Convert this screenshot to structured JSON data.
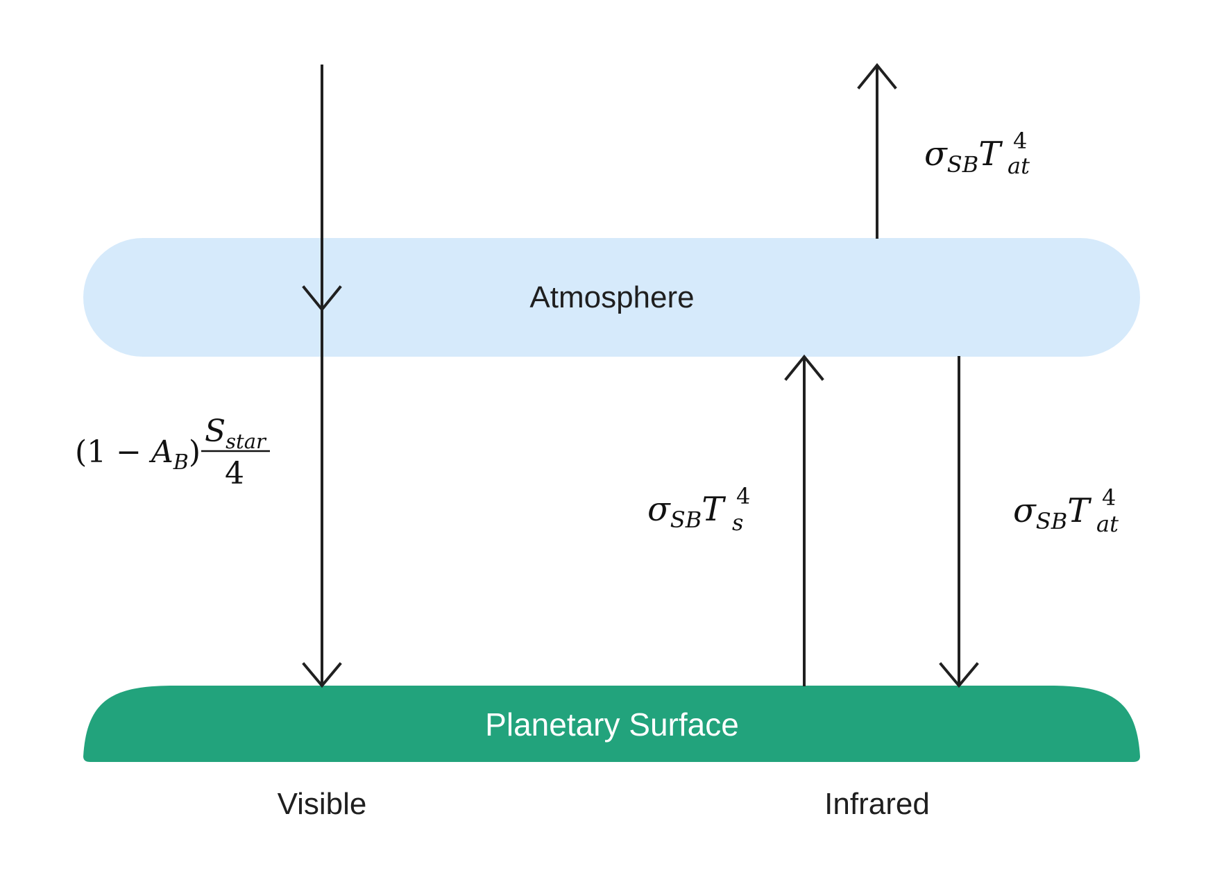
{
  "layers": {
    "atmosphere": {
      "label": "Atmosphere",
      "color": "#d6eafb"
    },
    "surface": {
      "label": "Planetary Surface",
      "color": "#22a37c"
    }
  },
  "bands": {
    "visible": "Visible",
    "infrared": "Infrared"
  },
  "fluxes": {
    "absorbed_stellar": {
      "open_paren": "(1 − ",
      "albedo_var": "A",
      "albedo_sub": "B",
      "close_paren": ")",
      "numerator_var": "S",
      "numerator_sub": "star",
      "denominator": "4"
    },
    "atmosphere_to_space": {
      "sigma": "σ",
      "sigma_sub": "SB",
      "temp_var": "T",
      "temp_sub": "at",
      "power": "4"
    },
    "surface_emission": {
      "sigma": "σ",
      "sigma_sub": "SB",
      "temp_var": "T",
      "temp_sub": "s",
      "power": "4"
    },
    "atmosphere_back_radiation": {
      "sigma": "σ",
      "sigma_sub": "SB",
      "temp_var": "T",
      "temp_sub": "at",
      "power": "4"
    }
  },
  "colors": {
    "arrow": "#202020",
    "text": "#1f1f1f"
  }
}
